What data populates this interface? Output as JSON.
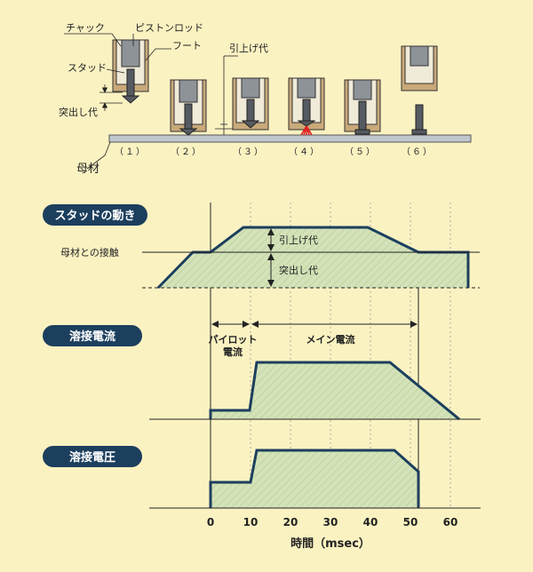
{
  "top_labels": {
    "chuck": "チャック",
    "piston_rod": "ピストンロッド",
    "foot": "フート",
    "stud": "スタッド",
    "protrusion": "突出し代",
    "lift": "引上げ代",
    "base_material": "母材"
  },
  "steps": [
    "（１）",
    "（２）",
    "（３）",
    "（４）",
    "（５）",
    "（６）"
  ],
  "panels": {
    "stud_motion": "スタッドの動き",
    "weld_current": "溶接電流",
    "weld_voltage": "溶接電圧"
  },
  "annotations": {
    "base_contact": "母材との接触",
    "lift": "引上げ代",
    "protrusion": "突出し代",
    "pilot": "パイロット",
    "pilot2": "電流",
    "main": "メイン電流"
  },
  "axis": {
    "ticks": [
      "0",
      "10",
      "20",
      "30",
      "40",
      "50",
      "60"
    ],
    "label": "時間（msec）"
  },
  "colors": {
    "navy": "#1c3f5e",
    "fill": "#d3e2b8",
    "bg": "#fbf2c2",
    "arc": "#e02020"
  }
}
